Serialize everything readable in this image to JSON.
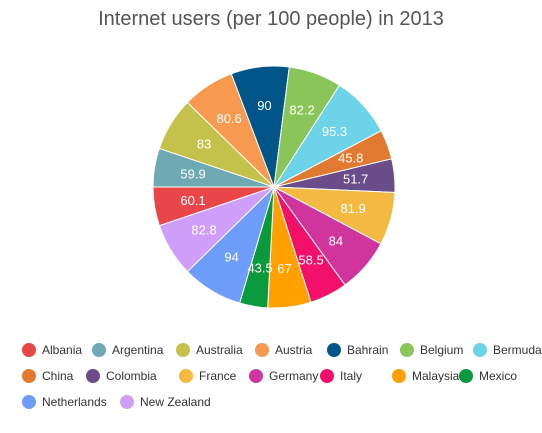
{
  "chart_data": {
    "type": "pie",
    "title": "Internet users (per 100 people) in 2013",
    "categories": [
      "Albania",
      "Argentina",
      "Australia",
      "Austria",
      "Bahrain",
      "Belgium",
      "Bermuda",
      "China",
      "Colombia",
      "France",
      "Germany",
      "Italy",
      "Malaysia",
      "Mexico",
      "Netherlands",
      "New Zealand"
    ],
    "values": [
      60.1,
      59.9,
      83,
      80.6,
      90,
      82.2,
      95.3,
      45.8,
      51.7,
      81.9,
      84,
      58.5,
      67,
      43.5,
      94,
      82.8
    ],
    "colors": [
      "#e94649",
      "#6fa9b3",
      "#c4c24a",
      "#f7994e",
      "#015589",
      "#8ac55a",
      "#6cd3e8",
      "#e17a30",
      "#6b4c8a",
      "#f3b941",
      "#d0359e",
      "#f2106a",
      "#ff9f00",
      "#0b993d",
      "#6e9cf9",
      "#cf9ef9"
    ],
    "legend_position": "bottom"
  }
}
